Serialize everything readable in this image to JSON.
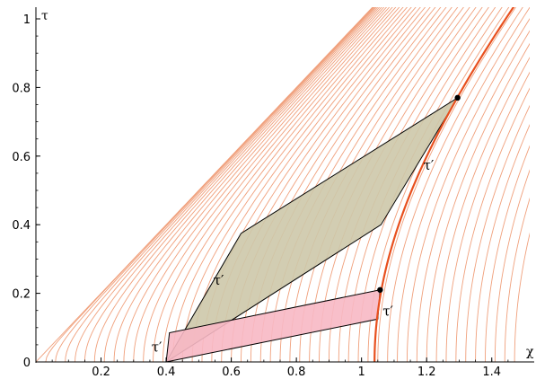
{
  "chart_data": {
    "type": "line",
    "title": "",
    "xlabel": "χ",
    "ylabel": "τ",
    "xlim": [
      0,
      1.5
    ],
    "ylim": [
      0,
      1
    ],
    "x_ticks": [
      0.2,
      0.4,
      0.6,
      0.8,
      1,
      1.2,
      1.4
    ],
    "x_tick_labels": [
      "0.2",
      "0.4",
      "0.6",
      "0.8",
      "1",
      "1.2",
      "1.4"
    ],
    "y_ticks": [
      0,
      0.2,
      0.4,
      0.6,
      0.8,
      1
    ],
    "y_tick_labels": [
      "0",
      "0.2",
      "0.4",
      "0.6",
      "0.8",
      "1"
    ],
    "grid": false,
    "colors": {
      "curves": "#f0a07c",
      "highlight_curve": "#e8501e",
      "green_fill": "#cdc8aa",
      "pink_fill": "#f7b8c4",
      "outline": "#000000"
    },
    "family": {
      "description_of_curves": "hyperbolae chi^2 - tau^2 = c^2",
      "c_values": [
        0.0,
        0.03,
        0.06,
        0.09,
        0.12,
        0.15,
        0.18,
        0.21,
        0.24,
        0.27,
        0.3,
        0.33,
        0.36,
        0.39,
        0.42,
        0.45,
        0.48,
        0.51,
        0.54,
        0.57,
        0.6,
        0.63,
        0.66,
        0.69,
        0.72,
        0.75,
        0.78,
        0.81,
        0.84,
        0.87,
        0.9,
        0.93,
        0.96,
        0.99,
        1.02,
        1.05,
        1.08,
        1.11,
        1.14,
        1.17,
        1.2,
        1.23,
        1.26,
        1.29,
        1.32,
        1.35,
        1.38,
        1.41,
        1.44,
        1.47
      ],
      "highlight_c": 1.04
    },
    "shapes": [
      {
        "name": "green-parallelogram",
        "points": [
          [
            0.4,
            0.0
          ],
          [
            0.63,
            0.375
          ],
          [
            1.295,
            0.77
          ],
          [
            1.06,
            0.4
          ]
        ]
      },
      {
        "name": "pink-parallelogram",
        "points": [
          [
            0.4,
            0.0
          ],
          [
            0.41,
            0.085
          ],
          [
            1.057,
            0.21
          ],
          [
            1.05,
            0.125
          ]
        ]
      }
    ],
    "points": [
      {
        "name": "upper-event-point",
        "x": 1.295,
        "y": 0.77
      },
      {
        "name": "lower-event-point",
        "x": 1.057,
        "y": 0.21
      }
    ],
    "annotations": [
      {
        "name": "tau-prime-upper-right",
        "text": "τ′",
        "x": 1.19,
        "y": 0.56
      },
      {
        "name": "tau-prime-left-diagonal",
        "text": "τ′",
        "x": 0.545,
        "y": 0.225
      },
      {
        "name": "tau-prime-lower-right",
        "text": "τ′",
        "x": 1.065,
        "y": 0.135
      },
      {
        "name": "tau-prime-origin",
        "text": "τ′",
        "x": 0.355,
        "y": 0.03
      }
    ]
  }
}
